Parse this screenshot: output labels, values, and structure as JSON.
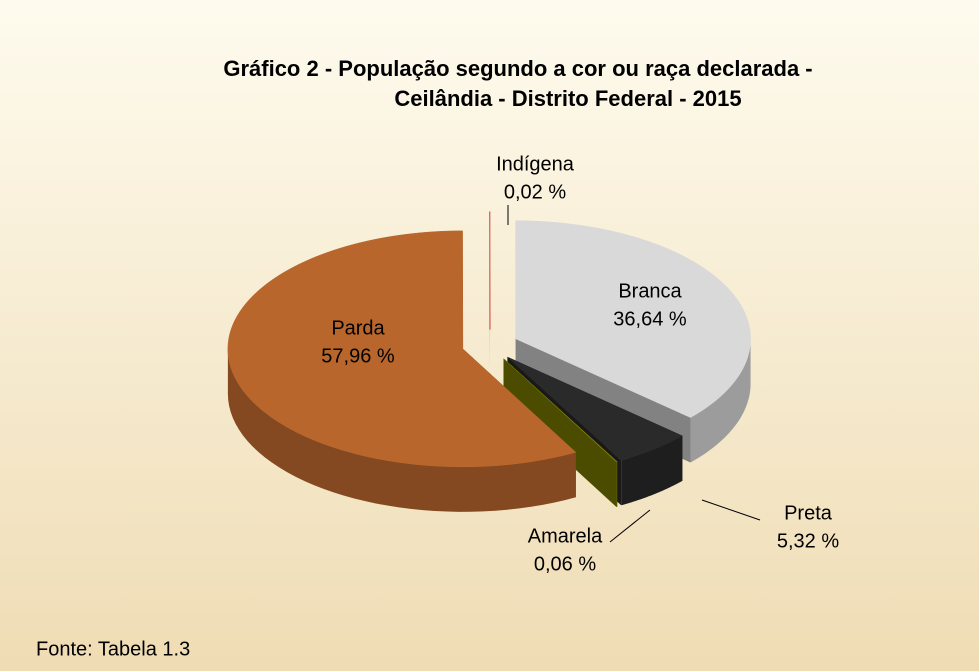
{
  "chart_data": {
    "type": "pie",
    "title": [
      "Gráfico 2 - População segundo a cor ou raça declarada -",
      "Ceilândia - Distrito Federal - 2015"
    ],
    "categories": [
      "Branca",
      "Preta",
      "Amarela",
      "Parda",
      "Indígena"
    ],
    "values": [
      36.64,
      5.32,
      0.06,
      57.96,
      0.02
    ],
    "value_labels": [
      "36,64 %",
      "5,32 %",
      "0,06 %",
      "57,96 %",
      "0,02 %"
    ],
    "colors": [
      "#d9d9d9",
      "#2a2a2a",
      "#7f7f00",
      "#b8662c",
      "#c00000"
    ],
    "source": "Fonte: Tabela 1.3"
  }
}
